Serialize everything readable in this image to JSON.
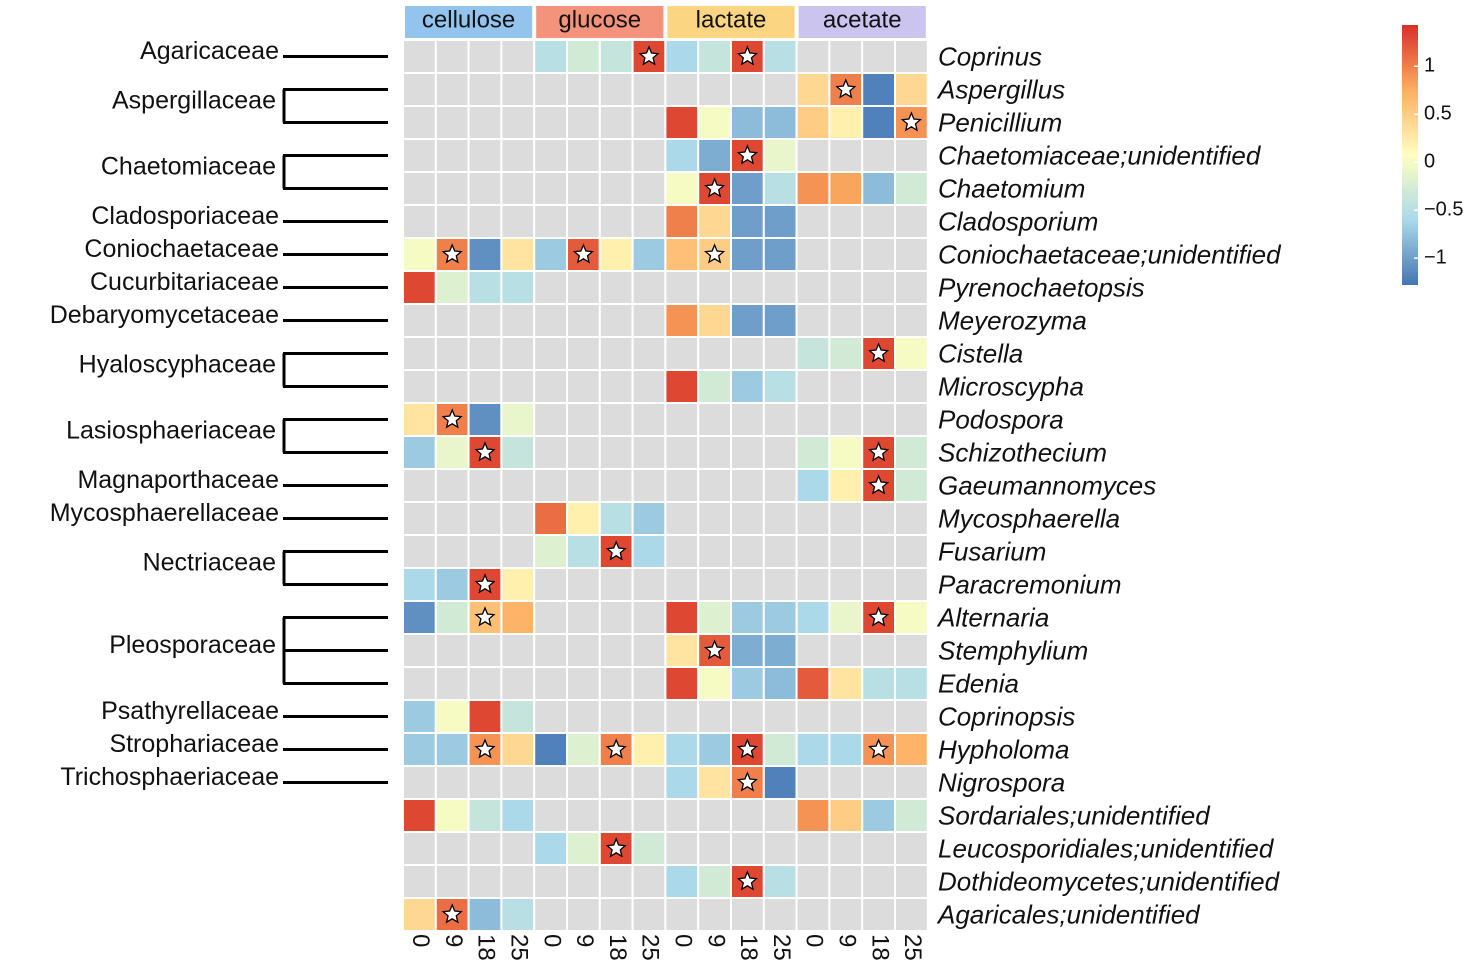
{
  "chart_data": {
    "type": "heatmap",
    "conditions": [
      {
        "name": "cellulose",
        "color": "#93c4ee",
        "columns": [
          0,
          9,
          18,
          25
        ]
      },
      {
        "name": "glucose",
        "color": "#f4937b",
        "columns": [
          0,
          9,
          18,
          25
        ]
      },
      {
        "name": "lactate",
        "color": "#fbd582",
        "columns": [
          0,
          9,
          18,
          25
        ]
      },
      {
        "name": "acetate",
        "color": "#cbc4ef",
        "columns": [
          0,
          9,
          18,
          25
        ]
      }
    ],
    "missing_color": "#dcdcdc",
    "colorscale": [
      "#4575b4",
      "#abd9e9",
      "#ffffbf",
      "#fdae61",
      "#d73027"
    ],
    "colorbar": {
      "lim": [
        -1.28,
        1.43
      ],
      "ticks": [
        1,
        0.5,
        0,
        {
          "value": -0.5,
          "label": "−0.5"
        },
        {
          "value": -1,
          "label": "−1"
        }
      ]
    },
    "row_groups": [
      {
        "family": "Agaricaceae",
        "rows": [
          {
            "label": "Coprinus",
            "values": [
              null,
              null,
              null,
              null,
              -0.5,
              -0.3,
              -0.4,
              1.3,
              -0.6,
              -0.4,
              1.3,
              -0.5,
              null,
              null,
              null,
              null
            ],
            "stars": [
              7,
              10
            ]
          }
        ]
      },
      {
        "family": "Aspergillaceae",
        "rows": [
          {
            "label": "Aspergillus",
            "values": [
              null,
              null,
              null,
              null,
              null,
              null,
              null,
              null,
              null,
              null,
              null,
              null,
              0.4,
              1.0,
              -1.2,
              0.4
            ],
            "stars": [
              13
            ]
          },
          {
            "label": "Penicillium",
            "values": [
              null,
              null,
              null,
              null,
              null,
              null,
              null,
              null,
              1.3,
              0,
              -0.8,
              -0.8,
              0.5,
              0.2,
              -1.2,
              0.9
            ],
            "stars": [
              15
            ]
          }
        ]
      },
      {
        "family": "Chaetomiaceae",
        "rows": [
          {
            "label": "Chaetomiaceae;unidentified",
            "values": [
              null,
              null,
              null,
              null,
              null,
              null,
              null,
              null,
              -0.6,
              -0.9,
              1.3,
              -0.1,
              null,
              null,
              null,
              null
            ],
            "stars": [
              10
            ]
          },
          {
            "label": "Chaetomium",
            "values": [
              null,
              null,
              null,
              null,
              null,
              null,
              null,
              null,
              0,
              1.3,
              -1.0,
              -0.5,
              0.9,
              0.8,
              -0.8,
              -0.3
            ],
            "stars": [
              9
            ]
          }
        ]
      },
      {
        "family": "Cladosporiaceae",
        "rows": [
          {
            "label": "Cladosporium",
            "values": [
              null,
              null,
              null,
              null,
              null,
              null,
              null,
              null,
              1.0,
              0.4,
              -1.0,
              -1.0,
              null,
              null,
              null,
              null
            ],
            "stars": []
          }
        ]
      },
      {
        "family": "Coniochaetaceae",
        "rows": [
          {
            "label": "Coniochaetaceae;unidentified",
            "values": [
              0,
              1.0,
              -1.1,
              0.3,
              -0.7,
              1.2,
              0.2,
              -0.7,
              0.6,
              0.5,
              -1.0,
              -1.0,
              null,
              null,
              null,
              null
            ],
            "stars": [
              1,
              5,
              9
            ]
          }
        ]
      },
      {
        "family": "Cucurbitariaceae",
        "rows": [
          {
            "label": "Pyrenochaetopsis",
            "values": [
              1.3,
              -0.2,
              -0.5,
              -0.5,
              null,
              null,
              null,
              null,
              null,
              null,
              null,
              null,
              null,
              null,
              null,
              null
            ],
            "stars": []
          }
        ]
      },
      {
        "family": "Debaryomycetaceae",
        "rows": [
          {
            "label": "Meyerozyma",
            "values": [
              null,
              null,
              null,
              null,
              null,
              null,
              null,
              null,
              0.9,
              0.4,
              -1.0,
              -1.0,
              null,
              null,
              null,
              null
            ],
            "stars": []
          }
        ]
      },
      {
        "family": "Hyaloscyphaceae",
        "rows": [
          {
            "label": "Cistella",
            "values": [
              null,
              null,
              null,
              null,
              null,
              null,
              null,
              null,
              null,
              null,
              null,
              null,
              -0.4,
              -0.3,
              1.3,
              0
            ],
            "stars": [
              14
            ]
          },
          {
            "label": "Microscypha",
            "values": [
              null,
              null,
              null,
              null,
              null,
              null,
              null,
              null,
              1.3,
              -0.3,
              -0.7,
              -0.5,
              null,
              null,
              null,
              null
            ],
            "stars": []
          }
        ]
      },
      {
        "family": "Lasiosphaeriaceae",
        "rows": [
          {
            "label": "Podospora",
            "values": [
              0.3,
              1.0,
              -1.1,
              -0.1,
              null,
              null,
              null,
              null,
              null,
              null,
              null,
              null,
              null,
              null,
              null,
              null
            ],
            "stars": [
              1
            ]
          },
          {
            "label": "Schizothecium",
            "values": [
              -0.7,
              -0.1,
              1.3,
              -0.4,
              null,
              null,
              null,
              null,
              null,
              null,
              null,
              null,
              -0.3,
              0,
              1.3,
              -0.3
            ],
            "stars": [
              2,
              14
            ]
          }
        ]
      },
      {
        "family": "Magnaporthaceae",
        "rows": [
          {
            "label": "Gaeumannomyces",
            "values": [
              null,
              null,
              null,
              null,
              null,
              null,
              null,
              null,
              null,
              null,
              null,
              null,
              -0.6,
              0.2,
              1.3,
              -0.3
            ],
            "stars": [
              14
            ]
          }
        ]
      },
      {
        "family": "Mycosphaerellaceae",
        "rows": [
          {
            "label": "Mycosphaerella",
            "values": [
              null,
              null,
              null,
              null,
              1.1,
              0.2,
              -0.5,
              -0.7,
              null,
              null,
              null,
              null,
              null,
              null,
              null,
              null
            ],
            "stars": []
          }
        ]
      },
      {
        "family": "Nectriaceae",
        "rows": [
          {
            "label": "Fusarium",
            "values": [
              null,
              null,
              null,
              null,
              -0.2,
              -0.5,
              1.3,
              -0.6,
              null,
              null,
              null,
              null,
              null,
              null,
              null,
              null
            ],
            "stars": [
              6
            ]
          },
          {
            "label": "Paracremonium",
            "values": [
              -0.6,
              -0.7,
              1.3,
              0.2,
              null,
              null,
              null,
              null,
              null,
              null,
              null,
              null,
              null,
              null,
              null,
              null
            ],
            "stars": [
              2
            ]
          }
        ]
      },
      {
        "family": "Pleosporaceae",
        "rows": [
          {
            "label": "Alternaria",
            "values": [
              -1.1,
              -0.3,
              0.6,
              0.7,
              null,
              null,
              null,
              null,
              1.3,
              -0.2,
              -0.7,
              -0.7,
              -0.6,
              -0.1,
              1.3,
              0
            ],
            "stars": [
              2,
              14
            ]
          },
          {
            "label": "Stemphylium",
            "values": [
              null,
              null,
              null,
              null,
              null,
              null,
              null,
              null,
              0.3,
              1.2,
              -0.9,
              -0.9,
              null,
              null,
              null,
              null
            ],
            "stars": [
              9
            ]
          },
          {
            "label": "Edenia",
            "values": [
              null,
              null,
              null,
              null,
              null,
              null,
              null,
              null,
              1.3,
              0,
              -0.7,
              -0.8,
              1.2,
              0.3,
              -0.5,
              -0.5
            ],
            "stars": []
          }
        ]
      },
      {
        "family": "Psathyrellaceae",
        "rows": [
          {
            "label": "Coprinopsis",
            "values": [
              -0.7,
              0,
              1.3,
              -0.4,
              null,
              null,
              null,
              null,
              null,
              null,
              null,
              null,
              null,
              null,
              null,
              null
            ],
            "stars": []
          }
        ]
      },
      {
        "family": "Strophariaceae",
        "rows": [
          {
            "label": "Hypholoma",
            "values": [
              -0.7,
              -0.7,
              0.9,
              0.4,
              -1.2,
              -0.2,
              1.0,
              0.2,
              -0.6,
              -0.7,
              1.3,
              -0.3,
              -0.6,
              -0.6,
              0.9,
              0.7
            ],
            "stars": [
              2,
              6,
              10,
              14
            ]
          }
        ]
      },
      {
        "family": "Trichosphaeriaceae",
        "rows": [
          {
            "label": "Nigrospora",
            "values": [
              null,
              null,
              null,
              null,
              null,
              null,
              null,
              null,
              -0.6,
              0.3,
              1.0,
              -1.2,
              null,
              null,
              null,
              null
            ],
            "stars": [
              10
            ]
          }
        ]
      },
      {
        "rows": [
          {
            "label": "Sordariales;unidentified",
            "values": [
              1.3,
              0,
              -0.4,
              -0.6,
              null,
              null,
              null,
              null,
              null,
              null,
              null,
              null,
              0.9,
              0.5,
              -0.7,
              -0.3
            ],
            "stars": []
          },
          {
            "label": "Leucosporidiales;unidentified",
            "values": [
              null,
              null,
              null,
              null,
              -0.6,
              -0.2,
              1.3,
              -0.3,
              null,
              null,
              null,
              null,
              null,
              null,
              null,
              null
            ],
            "stars": [
              6
            ]
          },
          {
            "label": "Dothideomycetes;unidentified",
            "values": [
              null,
              null,
              null,
              null,
              null,
              null,
              null,
              null,
              -0.6,
              -0.3,
              1.3,
              -0.5,
              null,
              null,
              null,
              null
            ],
            "stars": [
              10
            ]
          },
          {
            "label": "Agaricales;unidentified",
            "values": [
              0.4,
              1.1,
              -0.8,
              -0.5,
              null,
              null,
              null,
              null,
              null,
              null,
              null,
              null,
              null,
              null,
              null,
              null
            ],
            "stars": [
              1
            ]
          }
        ]
      }
    ]
  }
}
